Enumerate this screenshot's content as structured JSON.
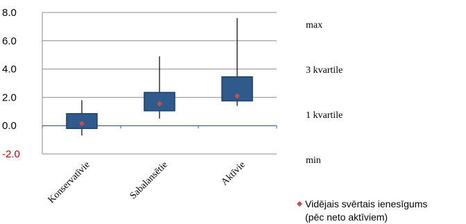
{
  "chart_data": {
    "type": "boxplot",
    "y_ticks": [
      "8.0",
      "6.0",
      "4.0",
      "2.0",
      "0.0",
      "-2.0"
    ],
    "ylim": [
      -2.0,
      8.0
    ],
    "categories": [
      "Konservatīvie",
      "Sabalansētie",
      "Aktīvie"
    ],
    "boxes": [
      {
        "max": 1.8,
        "q3": 0.85,
        "q1": -0.2,
        "min": -0.7,
        "mean": 0.15
      },
      {
        "max": 4.9,
        "q3": 2.35,
        "q1": 1.05,
        "min": 0.5,
        "mean": 1.55
      },
      {
        "max": 7.6,
        "q3": 3.45,
        "q1": 1.75,
        "min": 1.4,
        "mean": 2.1
      }
    ],
    "grid": true,
    "legend": {
      "stat_labels": [
        "max",
        "3 kvartile",
        "1 kvartile",
        "min"
      ],
      "mean_label_line1": "Vidējais svērtais ienesīgums",
      "mean_label_line2": "(pēc neto aktīviem)"
    },
    "colors": {
      "box_fill": "#2f5b8c",
      "mean_marker": "#c0504d",
      "grid": "#8c8c8c",
      "axis_text_negative": "#c00000"
    }
  }
}
